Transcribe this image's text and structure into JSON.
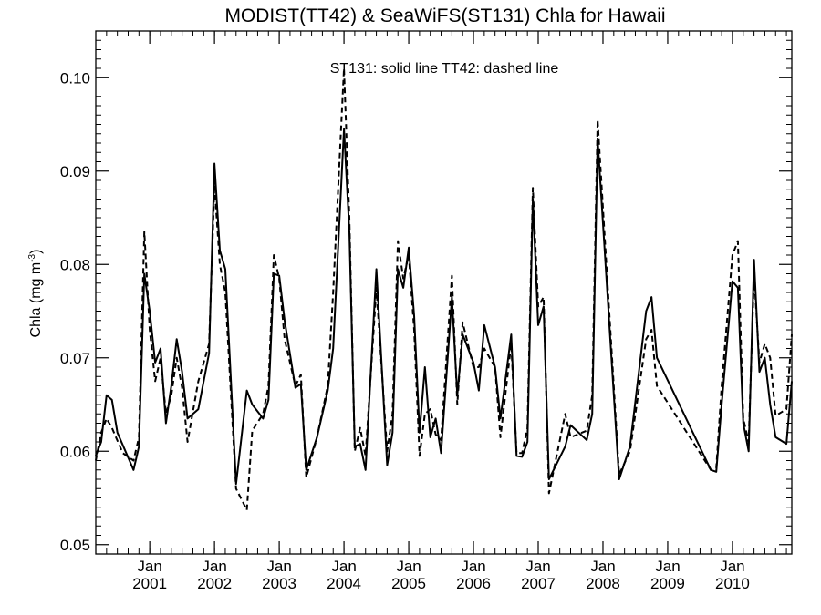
{
  "chart_data": {
    "type": "line",
    "title": "MODIST(TT42) & SeaWiFS(ST131)  Chla for Hawaii",
    "annotation": "ST131: solid line   TT42: dashed line",
    "ylabel": "Chla (mg m",
    "ylabel_sup": "-3",
    "ylabel_close": ")",
    "xlim": [
      "2000-03",
      "2010-12"
    ],
    "ylim": [
      0.049,
      0.105
    ],
    "yticks": [
      "0.05",
      "0.06",
      "0.07",
      "0.08",
      "0.09",
      "0.10"
    ],
    "xticks": [
      {
        "month": "Jan",
        "year": "2001"
      },
      {
        "month": "Jan",
        "year": "2002"
      },
      {
        "month": "Jan",
        "year": "2003"
      },
      {
        "month": "Jan",
        "year": "2004"
      },
      {
        "month": "Jan",
        "year": "2005"
      },
      {
        "month": "Jan",
        "year": "2006"
      },
      {
        "month": "Jan",
        "year": "2007"
      },
      {
        "month": "Jan",
        "year": "2008"
      },
      {
        "month": "Jan",
        "year": "2009"
      },
      {
        "month": "Jan",
        "year": "2010"
      }
    ],
    "grid": false,
    "series": [
      {
        "name": "ST131",
        "style": "solid",
        "color": "#000000",
        "points": [
          [
            "2000-03",
            0.0595
          ],
          [
            "2000-04",
            0.061
          ],
          [
            "2000-05",
            0.066
          ],
          [
            "2000-06",
            0.0655
          ],
          [
            "2000-07",
            0.062
          ],
          [
            "2000-10",
            0.058
          ],
          [
            "2000-11",
            0.0605
          ],
          [
            "2000-12",
            0.079
          ],
          [
            "2001-01",
            0.075
          ],
          [
            "2001-02",
            0.0695
          ],
          [
            "2001-03",
            0.071
          ],
          [
            "2001-04",
            0.063
          ],
          [
            "2001-05",
            0.067
          ],
          [
            "2001-06",
            0.072
          ],
          [
            "2001-07",
            0.0685
          ],
          [
            "2001-08",
            0.0635
          ],
          [
            "2001-10",
            0.0645
          ],
          [
            "2001-12",
            0.0705
          ],
          [
            "2002-01",
            0.0908
          ],
          [
            "2002-02",
            0.0815
          ],
          [
            "2002-03",
            0.0795
          ],
          [
            "2002-05",
            0.0565
          ],
          [
            "2002-07",
            0.0665
          ],
          [
            "2002-08",
            0.065
          ],
          [
            "2002-10",
            0.0635
          ],
          [
            "2002-11",
            0.0655
          ],
          [
            "2002-12",
            0.079
          ],
          [
            "2003-01",
            0.0788
          ],
          [
            "2003-02",
            0.074
          ],
          [
            "2003-04",
            0.0668
          ],
          [
            "2003-05",
            0.0672
          ],
          [
            "2003-06",
            0.058
          ],
          [
            "2003-08",
            0.0615
          ],
          [
            "2003-10",
            0.0665
          ],
          [
            "2003-11",
            0.071
          ],
          [
            "2004-01",
            0.0945
          ],
          [
            "2004-02",
            0.0835
          ],
          [
            "2004-03",
            0.0605
          ],
          [
            "2004-04",
            0.0608
          ],
          [
            "2004-05",
            0.058
          ],
          [
            "2004-07",
            0.0795
          ],
          [
            "2004-09",
            0.0585
          ],
          [
            "2004-10",
            0.062
          ],
          [
            "2004-11",
            0.0795
          ],
          [
            "2004-12",
            0.0775
          ],
          [
            "2005-01",
            0.0818
          ],
          [
            "2005-02",
            0.0745
          ],
          [
            "2005-03",
            0.062
          ],
          [
            "2005-04",
            0.069
          ],
          [
            "2005-05",
            0.0615
          ],
          [
            "2005-06",
            0.0635
          ],
          [
            "2005-07",
            0.0598
          ],
          [
            "2005-09",
            0.0765
          ],
          [
            "2005-10",
            0.066
          ],
          [
            "2005-11",
            0.0725
          ],
          [
            "2006-01",
            0.0695
          ],
          [
            "2006-02",
            0.0665
          ],
          [
            "2006-03",
            0.0735
          ],
          [
            "2006-05",
            0.069
          ],
          [
            "2006-06",
            0.0635
          ],
          [
            "2006-08",
            0.0725
          ],
          [
            "2006-09",
            0.0595
          ],
          [
            "2006-10",
            0.0594
          ],
          [
            "2006-11",
            0.061
          ],
          [
            "2006-12",
            0.087
          ],
          [
            "2007-01",
            0.0735
          ],
          [
            "2007-02",
            0.0755
          ],
          [
            "2007-03",
            0.057
          ],
          [
            "2007-06",
            0.0605
          ],
          [
            "2007-07",
            0.0628
          ],
          [
            "2007-10",
            0.0612
          ],
          [
            "2007-11",
            0.064
          ],
          [
            "2007-12",
            0.0935
          ],
          [
            "2008-04",
            0.057
          ],
          [
            "2008-06",
            0.0605
          ],
          [
            "2008-09",
            0.075
          ],
          [
            "2008-10",
            0.0765
          ],
          [
            "2008-11",
            0.07
          ],
          [
            "2009-09",
            0.058
          ],
          [
            "2009-10",
            0.0578
          ],
          [
            "2009-11",
            0.065
          ],
          [
            "2010-01",
            0.0782
          ],
          [
            "2010-02",
            0.0775
          ],
          [
            "2010-03",
            0.063
          ],
          [
            "2010-04",
            0.06
          ],
          [
            "2010-05",
            0.0805
          ],
          [
            "2010-06",
            0.0685
          ],
          [
            "2010-07",
            0.07
          ],
          [
            "2010-08",
            0.065
          ],
          [
            "2010-09",
            0.0615
          ],
          [
            "2010-11",
            0.0608
          ],
          [
            "2010-12",
            0.0675
          ]
        ]
      },
      {
        "name": "TT42",
        "style": "dashed",
        "color": "#000000",
        "points": [
          [
            "2000-03",
            0.059
          ],
          [
            "2000-04",
            0.062
          ],
          [
            "2000-05",
            0.0635
          ],
          [
            "2000-06",
            0.0625
          ],
          [
            "2000-08",
            0.0598
          ],
          [
            "2000-10",
            0.059
          ],
          [
            "2000-11",
            0.0615
          ],
          [
            "2000-12",
            0.0835
          ],
          [
            "2001-01",
            0.073
          ],
          [
            "2001-02",
            0.0675
          ],
          [
            "2001-03",
            0.07
          ],
          [
            "2001-04",
            0.064
          ],
          [
            "2001-05",
            0.066
          ],
          [
            "2001-06",
            0.07
          ],
          [
            "2001-07",
            0.0668
          ],
          [
            "2001-08",
            0.061
          ],
          [
            "2001-10",
            0.0675
          ],
          [
            "2001-12",
            0.0715
          ],
          [
            "2002-01",
            0.0885
          ],
          [
            "2002-02",
            0.08
          ],
          [
            "2002-03",
            0.077
          ],
          [
            "2002-05",
            0.056
          ],
          [
            "2002-07",
            0.0537
          ],
          [
            "2002-08",
            0.0622
          ],
          [
            "2002-10",
            0.064
          ],
          [
            "2002-11",
            0.067
          ],
          [
            "2002-12",
            0.081
          ],
          [
            "2003-01",
            0.0785
          ],
          [
            "2003-02",
            0.072
          ],
          [
            "2003-04",
            0.067
          ],
          [
            "2003-05",
            0.0682
          ],
          [
            "2003-06",
            0.0572
          ],
          [
            "2003-08",
            0.0615
          ],
          [
            "2003-10",
            0.067
          ],
          [
            "2003-11",
            0.077
          ],
          [
            "2004-01",
            0.101
          ],
          [
            "2004-02",
            0.085
          ],
          [
            "2004-03",
            0.06
          ],
          [
            "2004-04",
            0.0625
          ],
          [
            "2004-05",
            0.0595
          ],
          [
            "2004-07",
            0.0775
          ],
          [
            "2004-09",
            0.06
          ],
          [
            "2004-10",
            0.064
          ],
          [
            "2004-11",
            0.0825
          ],
          [
            "2004-12",
            0.0785
          ],
          [
            "2005-01",
            0.081
          ],
          [
            "2005-02",
            0.073
          ],
          [
            "2005-03",
            0.0595
          ],
          [
            "2005-04",
            0.064
          ],
          [
            "2005-05",
            0.0645
          ],
          [
            "2005-06",
            0.0618
          ],
          [
            "2005-07",
            0.0612
          ],
          [
            "2005-09",
            0.0788
          ],
          [
            "2005-10",
            0.065
          ],
          [
            "2005-11",
            0.0738
          ],
          [
            "2006-01",
            0.069
          ],
          [
            "2006-02",
            0.069
          ],
          [
            "2006-03",
            0.071
          ],
          [
            "2006-05",
            0.069
          ],
          [
            "2006-06",
            0.0615
          ],
          [
            "2006-08",
            0.0715
          ],
          [
            "2006-09",
            0.0598
          ],
          [
            "2006-10",
            0.0598
          ],
          [
            "2006-11",
            0.0625
          ],
          [
            "2006-12",
            0.0882
          ],
          [
            "2007-01",
            0.0755
          ],
          [
            "2007-02",
            0.0765
          ],
          [
            "2007-03",
            0.0555
          ],
          [
            "2007-06",
            0.064
          ],
          [
            "2007-07",
            0.0615
          ],
          [
            "2007-10",
            0.0622
          ],
          [
            "2007-11",
            0.066
          ],
          [
            "2007-12",
            0.0955
          ],
          [
            "2008-04",
            0.0575
          ],
          [
            "2008-06",
            0.06
          ],
          [
            "2008-09",
            0.072
          ],
          [
            "2008-10",
            0.073
          ],
          [
            "2008-11",
            0.067
          ],
          [
            "2009-09",
            0.058
          ],
          [
            "2009-10",
            0.0582
          ],
          [
            "2009-11",
            0.067
          ],
          [
            "2010-01",
            0.081
          ],
          [
            "2010-02",
            0.0825
          ],
          [
            "2010-03",
            0.0635
          ],
          [
            "2010-04",
            0.061
          ],
          [
            "2010-05",
            0.079
          ],
          [
            "2010-06",
            0.0695
          ],
          [
            "2010-07",
            0.0715
          ],
          [
            "2010-08",
            0.07
          ],
          [
            "2010-09",
            0.0638
          ],
          [
            "2010-11",
            0.0645
          ],
          [
            "2010-12",
            0.0725
          ]
        ]
      }
    ]
  }
}
